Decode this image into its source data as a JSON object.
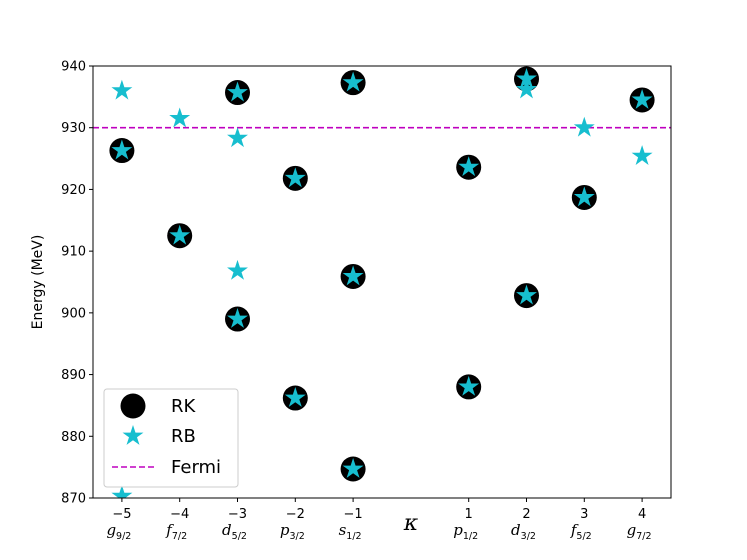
{
  "chart_data": {
    "type": "scatter",
    "title": "",
    "xlabel": "κ",
    "ylabel": "Energy (MeV)",
    "xlim": [
      -5.5,
      4.5
    ],
    "ylim": [
      870,
      940
    ],
    "y_ticks": [
      870,
      880,
      890,
      900,
      910,
      920,
      930,
      940
    ],
    "x_ticks": [
      {
        "x": -5,
        "label": "−5",
        "orbital": "g",
        "sub": "9/2"
      },
      {
        "x": -4,
        "label": "−4",
        "orbital": "f",
        "sub": "7/2"
      },
      {
        "x": -3,
        "label": "−3",
        "orbital": "d",
        "sub": "5/2"
      },
      {
        "x": -2,
        "label": "−2",
        "orbital": "p",
        "sub": "3/2"
      },
      {
        "x": -1,
        "label": "−1",
        "orbital": "s",
        "sub": "1/2"
      },
      {
        "x": 1,
        "label": "1",
        "orbital": "p",
        "sub": "1/2"
      },
      {
        "x": 2,
        "label": "2",
        "orbital": "d",
        "sub": "3/2"
      },
      {
        "x": 3,
        "label": "3",
        "orbital": "f",
        "sub": "5/2"
      },
      {
        "x": 4,
        "label": "4",
        "orbital": "g",
        "sub": "7/2"
      }
    ],
    "series": [
      {
        "name": "RK",
        "marker": "circle",
        "color": "#000000",
        "points": [
          [
            -5,
            926.3
          ],
          [
            -4,
            912.5
          ],
          [
            -3,
            935.7
          ],
          [
            -3,
            899.0
          ],
          [
            -2,
            921.8
          ],
          [
            -2,
            886.2
          ],
          [
            -1,
            937.3
          ],
          [
            -1,
            905.9
          ],
          [
            -1,
            874.7
          ],
          [
            1,
            923.6
          ],
          [
            1,
            888.0
          ],
          [
            2,
            937.9
          ],
          [
            2,
            902.8
          ],
          [
            3,
            918.7
          ],
          [
            4,
            934.5
          ]
        ]
      },
      {
        "name": "RB",
        "marker": "star",
        "color": "#17becf",
        "points": [
          [
            -5,
            936.0
          ],
          [
            -5,
            926.3
          ],
          [
            -5,
            870.3
          ],
          [
            -4,
            931.5
          ],
          [
            -4,
            912.5
          ],
          [
            -3,
            935.7
          ],
          [
            -3,
            928.3
          ],
          [
            -3,
            906.8
          ],
          [
            -3,
            899.0
          ],
          [
            -2,
            921.8
          ],
          [
            -2,
            886.2
          ],
          [
            -1,
            937.3
          ],
          [
            -1,
            905.9
          ],
          [
            -1,
            874.7
          ],
          [
            1,
            923.6
          ],
          [
            1,
            888.0
          ],
          [
            2,
            936.2
          ],
          [
            2,
            937.9
          ],
          [
            2,
            902.8
          ],
          [
            3,
            930.0
          ],
          [
            3,
            918.7
          ],
          [
            4,
            925.4
          ],
          [
            4,
            934.5
          ]
        ]
      },
      {
        "name": "Fermi",
        "type": "hline",
        "y": 930.0,
        "color": "#bf00bf",
        "style": "dashed"
      }
    ],
    "legend": {
      "position": "lower-left",
      "entries": [
        "RK",
        "RB",
        "Fermi"
      ]
    },
    "grid": false
  }
}
